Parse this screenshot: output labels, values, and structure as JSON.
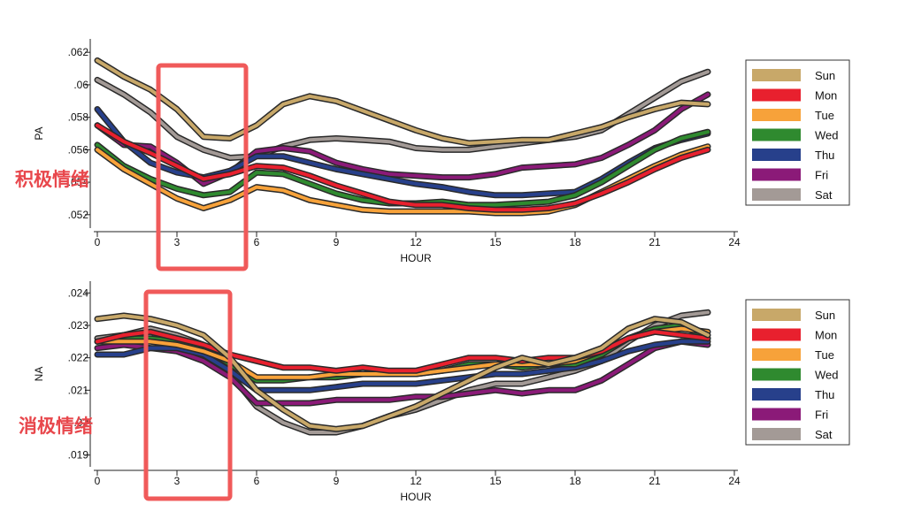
{
  "annotations": {
    "pa_label": "积极情绪",
    "na_label": "消极情绪",
    "label_color": "#e8474c",
    "box_color": "#f05a5a"
  },
  "series_styles": [
    {
      "name": "Sun",
      "color": "#c8a869"
    },
    {
      "name": "Mon",
      "color": "#e8202e"
    },
    {
      "name": "Tue",
      "color": "#f7a23a"
    },
    {
      "name": "Wed",
      "color": "#2f8a2f"
    },
    {
      "name": "Thu",
      "color": "#27408b"
    },
    {
      "name": "Fri",
      "color": "#8b1a78"
    },
    {
      "name": "Sat",
      "color": "#a39a96"
    }
  ],
  "chart_data": [
    {
      "type": "line",
      "ylabel": "PA",
      "xlabel": "HOUR",
      "xlim": [
        0,
        24
      ],
      "ylim": [
        0.0515,
        0.0625
      ],
      "xticks": [
        0,
        3,
        6,
        9,
        12,
        15,
        18,
        21,
        24
      ],
      "yticks": [
        0.052,
        0.054,
        0.056,
        0.058,
        0.06,
        0.062
      ],
      "ytick_labels": [
        ".052",
        ".054",
        ".056",
        ".058",
        ".06",
        ".062"
      ],
      "legend": "right",
      "x": [
        0,
        1,
        2,
        3,
        4,
        5,
        6,
        7,
        8,
        9,
        10,
        11,
        12,
        13,
        14,
        15,
        16,
        17,
        18,
        19,
        20,
        21,
        22,
        23
      ],
      "series": [
        {
          "name": "Sun",
          "values": [
            0.0615,
            0.0605,
            0.0597,
            0.0585,
            0.0568,
            0.0567,
            0.0575,
            0.0588,
            0.0593,
            0.059,
            0.0584,
            0.0578,
            0.0572,
            0.0567,
            0.0564,
            0.0565,
            0.0566,
            0.0566,
            0.057,
            0.0574,
            0.058,
            0.0585,
            0.0589,
            0.0588
          ]
        },
        {
          "name": "Mon",
          "values": [
            0.0575,
            0.0565,
            0.0558,
            0.055,
            0.0542,
            0.0545,
            0.055,
            0.0549,
            0.0544,
            0.0538,
            0.0533,
            0.0528,
            0.0526,
            0.0526,
            0.0524,
            0.0523,
            0.0523,
            0.0524,
            0.0527,
            0.0533,
            0.054,
            0.0548,
            0.0555,
            0.056
          ]
        },
        {
          "name": "Tue",
          "values": [
            0.056,
            0.0548,
            0.0539,
            0.053,
            0.0524,
            0.0529,
            0.0537,
            0.0535,
            0.0529,
            0.0526,
            0.0523,
            0.0522,
            0.0522,
            0.0522,
            0.0522,
            0.0521,
            0.0521,
            0.0522,
            0.0526,
            0.0534,
            0.0542,
            0.055,
            0.0557,
            0.0562
          ]
        },
        {
          "name": "Wed",
          "values": [
            0.0563,
            0.055,
            0.0542,
            0.0536,
            0.0532,
            0.0534,
            0.0546,
            0.0545,
            0.0539,
            0.0533,
            0.0529,
            0.0527,
            0.0527,
            0.0528,
            0.0526,
            0.0526,
            0.0527,
            0.0528,
            0.0532,
            0.054,
            0.055,
            0.056,
            0.0567,
            0.0571
          ]
        },
        {
          "name": "Thu",
          "values": [
            0.0585,
            0.0565,
            0.0552,
            0.0546,
            0.0543,
            0.0547,
            0.0556,
            0.0556,
            0.0552,
            0.0548,
            0.0545,
            0.0542,
            0.0539,
            0.0537,
            0.0534,
            0.0532,
            0.0532,
            0.0533,
            0.0534,
            0.0542,
            0.0552,
            0.0561,
            0.0566,
            0.057
          ]
        },
        {
          "name": "Fri",
          "values": [
            0.0575,
            0.0563,
            0.0562,
            0.0552,
            0.0539,
            0.0546,
            0.0559,
            0.0561,
            0.0559,
            0.0552,
            0.0548,
            0.0545,
            0.0544,
            0.0543,
            0.0543,
            0.0545,
            0.0549,
            0.055,
            0.0551,
            0.0555,
            0.0563,
            0.0572,
            0.0585,
            0.0594
          ]
        },
        {
          "name": "Sat",
          "values": [
            0.0603,
            0.0594,
            0.0583,
            0.0568,
            0.056,
            0.0555,
            0.0556,
            0.0562,
            0.0566,
            0.0567,
            0.0566,
            0.0565,
            0.0561,
            0.056,
            0.056,
            0.0562,
            0.0564,
            0.0566,
            0.0568,
            0.0572,
            0.0582,
            0.0592,
            0.0602,
            0.0608
          ]
        }
      ]
    },
    {
      "type": "line",
      "ylabel": "NA",
      "xlabel": "HOUR",
      "xlim": [
        0,
        24
      ],
      "ylim": [
        0.0188,
        0.0242
      ],
      "xticks": [
        0,
        3,
        6,
        9,
        12,
        15,
        18,
        21,
        24
      ],
      "yticks": [
        0.019,
        0.02,
        0.021,
        0.022,
        0.023,
        0.024
      ],
      "ytick_labels": [
        ".019",
        ".02",
        ".021",
        ".022",
        ".023",
        ".024"
      ],
      "legend": "right",
      "x": [
        0,
        1,
        2,
        3,
        4,
        5,
        6,
        7,
        8,
        9,
        10,
        11,
        12,
        13,
        14,
        15,
        16,
        17,
        18,
        19,
        20,
        21,
        22,
        23
      ],
      "series": [
        {
          "name": "Sun",
          "values": [
            0.0232,
            0.0233,
            0.0232,
            0.023,
            0.0227,
            0.022,
            0.021,
            0.0204,
            0.0199,
            0.0198,
            0.0199,
            0.0202,
            0.0205,
            0.0209,
            0.0213,
            0.0217,
            0.022,
            0.0218,
            0.022,
            0.0223,
            0.0229,
            0.0232,
            0.0231,
            0.0227
          ]
        },
        {
          "name": "Mon",
          "values": [
            0.0225,
            0.0227,
            0.0228,
            0.0226,
            0.0224,
            0.0221,
            0.0219,
            0.0217,
            0.0217,
            0.0216,
            0.0217,
            0.0216,
            0.0216,
            0.0218,
            0.022,
            0.022,
            0.0219,
            0.022,
            0.022,
            0.0222,
            0.0226,
            0.0228,
            0.0227,
            0.0226
          ]
        },
        {
          "name": "Tue",
          "values": [
            0.0225,
            0.0225,
            0.0225,
            0.0224,
            0.0222,
            0.0219,
            0.0214,
            0.0214,
            0.0214,
            0.0215,
            0.0215,
            0.0215,
            0.0215,
            0.0216,
            0.0217,
            0.0218,
            0.0218,
            0.0218,
            0.0219,
            0.0222,
            0.0226,
            0.0228,
            0.0229,
            0.0228
          ]
        },
        {
          "name": "Wed",
          "values": [
            0.0225,
            0.0226,
            0.0226,
            0.0225,
            0.0223,
            0.0218,
            0.0213,
            0.0213,
            0.0214,
            0.0214,
            0.0215,
            0.0215,
            0.0215,
            0.0216,
            0.0218,
            0.0218,
            0.0217,
            0.0218,
            0.0218,
            0.0221,
            0.0226,
            0.0229,
            0.023,
            0.0226
          ]
        },
        {
          "name": "Thu",
          "values": [
            0.0221,
            0.0221,
            0.0223,
            0.0223,
            0.0221,
            0.0216,
            0.021,
            0.021,
            0.021,
            0.0211,
            0.0212,
            0.0212,
            0.0212,
            0.0213,
            0.0214,
            0.0215,
            0.0215,
            0.0216,
            0.0217,
            0.0219,
            0.0222,
            0.0224,
            0.0225,
            0.0225
          ]
        },
        {
          "name": "Fri",
          "values": [
            0.0223,
            0.0224,
            0.0223,
            0.0222,
            0.0219,
            0.0214,
            0.0206,
            0.0206,
            0.0206,
            0.0207,
            0.0207,
            0.0207,
            0.0208,
            0.0208,
            0.0209,
            0.021,
            0.0209,
            0.021,
            0.021,
            0.0213,
            0.0218,
            0.0223,
            0.0225,
            0.0224
          ]
        },
        {
          "name": "Sat",
          "values": [
            0.0226,
            0.0227,
            0.0229,
            0.0227,
            0.0224,
            0.0215,
            0.0205,
            0.02,
            0.0197,
            0.0197,
            0.0199,
            0.0202,
            0.0204,
            0.0207,
            0.021,
            0.0212,
            0.0212,
            0.0214,
            0.0216,
            0.0219,
            0.0225,
            0.023,
            0.0233,
            0.0234
          ]
        }
      ]
    }
  ]
}
